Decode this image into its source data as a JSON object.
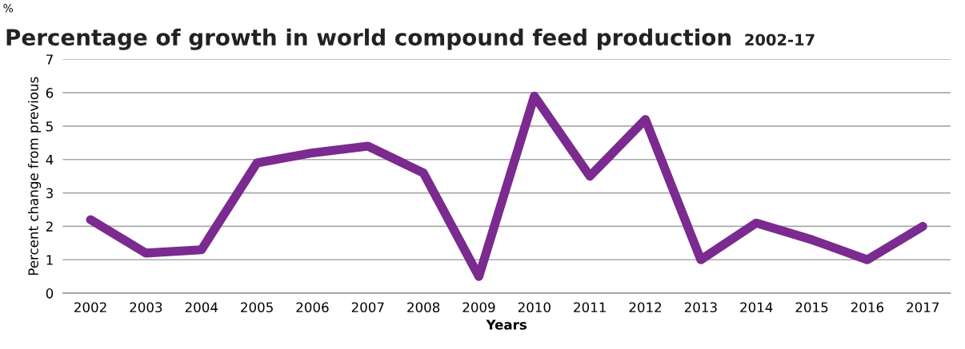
{
  "chart_data": {
    "type": "line",
    "title": "Percentage of growth in world compound feed production",
    "subtitle": "2002-17",
    "xlabel": "Years",
    "ylabel": "Percent change from previous",
    "annotations": [
      "%"
    ],
    "categories": [
      "2002",
      "2003",
      "2004",
      "2005",
      "2006",
      "2007",
      "2008",
      "2009",
      "2010",
      "2011",
      "2012",
      "2013",
      "2014",
      "2015",
      "2016",
      "2017"
    ],
    "series": [
      {
        "color": "#7b2a8f",
        "values": [
          2.2,
          1.2,
          1.3,
          3.9,
          4.2,
          4.4,
          3.6,
          0.5,
          5.9,
          3.5,
          5.2,
          1.0,
          2.1,
          1.6,
          1.0,
          2.0
        ]
      }
    ],
    "ylim": [
      0,
      7
    ],
    "yticks": [
      0,
      1,
      2,
      3,
      4,
      5,
      6,
      7
    ],
    "grid": "y",
    "line_style": "solid",
    "marker": "none"
  }
}
